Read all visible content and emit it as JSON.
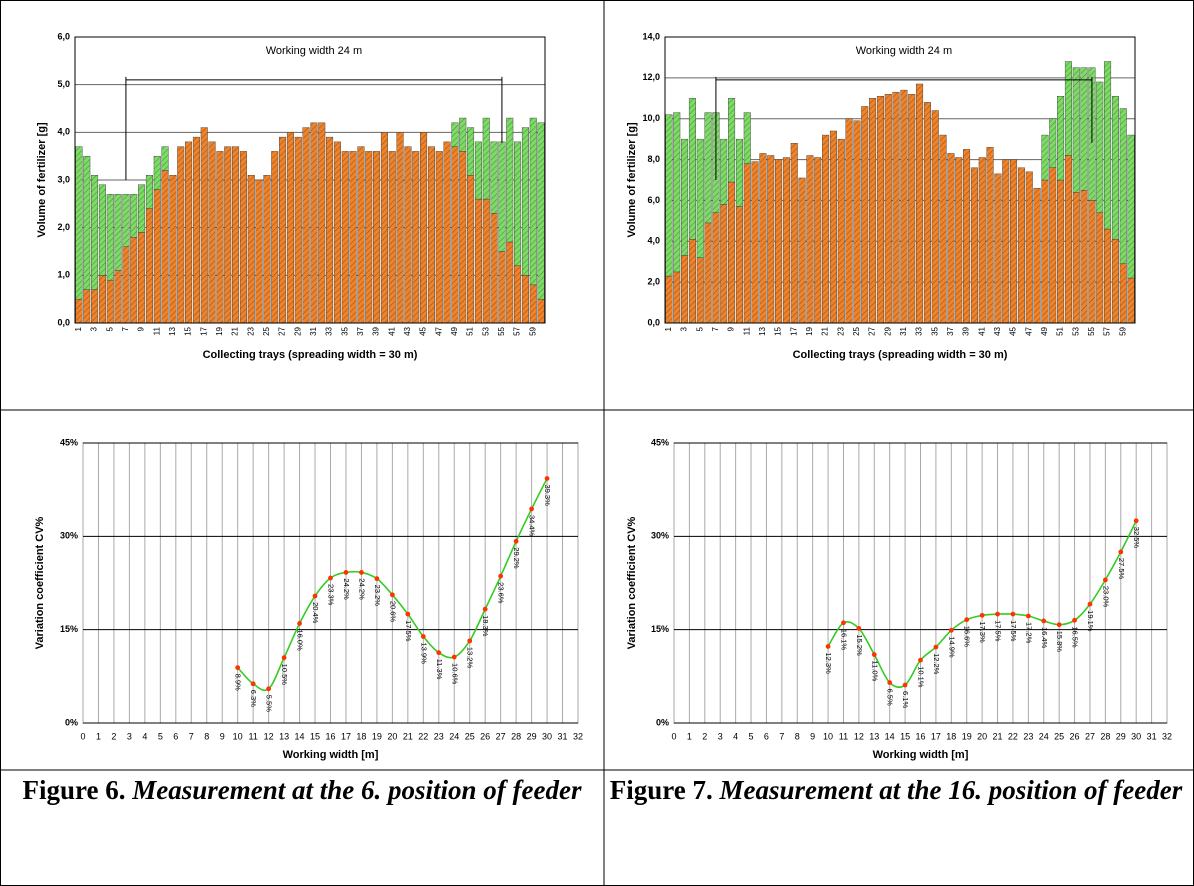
{
  "chart_data": [
    {
      "type": "bar",
      "stacked": true,
      "annotation": "Working width  24 m",
      "x_label": "Collecting trays (spreading width =  30 m)",
      "y_label": "Volume of fertilizer [g]",
      "categories": [
        "1",
        null,
        "3",
        null,
        "5",
        null,
        "7",
        null,
        "9",
        null,
        "11",
        null,
        "13",
        null,
        "15",
        null,
        "17",
        null,
        "19",
        null,
        "21",
        null,
        "23",
        null,
        "25",
        null,
        "27",
        null,
        "29",
        null,
        "31",
        null,
        "33",
        null,
        "35",
        null,
        "37",
        null,
        "39",
        null,
        "41",
        null,
        "43",
        null,
        "45",
        null,
        "47",
        null,
        "49",
        null,
        "51",
        null,
        "53",
        null,
        "55",
        null,
        "57",
        null,
        "59",
        null
      ],
      "series": [
        {
          "color": "#f0832a",
          "values": [
            0.5,
            0.7,
            0.7,
            1.0,
            0.9,
            1.1,
            1.6,
            1.8,
            1.9,
            2.4,
            2.8,
            3.2,
            3.1,
            3.7,
            3.8,
            3.9,
            4.1,
            3.8,
            3.6,
            3.7,
            3.7,
            3.6,
            3.1,
            3.0,
            3.1,
            3.6,
            3.9,
            4.0,
            3.9,
            4.1,
            4.2,
            4.2,
            3.9,
            3.8,
            3.6,
            3.6,
            3.7,
            3.6,
            3.6,
            4.0,
            3.6,
            4.0,
            3.7,
            3.6,
            4.0,
            3.7,
            3.6,
            3.8,
            3.7,
            3.6,
            3.1,
            2.6,
            2.6,
            2.3,
            1.5,
            1.7,
            1.2,
            1.0,
            0.8,
            0.5
          ]
        },
        {
          "color": "#7ddc66",
          "values": [
            3.2,
            2.8,
            2.4,
            1.9,
            1.8,
            1.6,
            1.1,
            0.9,
            1.0,
            0.7,
            0.7,
            0.5,
            0,
            0,
            0,
            0,
            0,
            0,
            0,
            0,
            0,
            0,
            0,
            0,
            0,
            0,
            0,
            0,
            0,
            0,
            0,
            0,
            0,
            0,
            0,
            0,
            0,
            0,
            0,
            0,
            0,
            0,
            0,
            0,
            0,
            0,
            0,
            0,
            0.5,
            0.7,
            1.0,
            1.2,
            1.7,
            1.5,
            2.3,
            2.6,
            2.6,
            3.1,
            3.5,
            3.7
          ]
        }
      ],
      "ylim": [
        0,
        6
      ],
      "yticks": [
        {
          "value": 0,
          "label": "0,0"
        },
        {
          "value": 1,
          "label": "1,0"
        },
        {
          "value": 2,
          "label": "2,0"
        },
        {
          "value": 3,
          "label": "3,0"
        },
        {
          "value": 4,
          "label": "4,0"
        },
        {
          "value": 5,
          "label": "5,0"
        },
        {
          "value": 6,
          "label": "6,0"
        }
      ],
      "grid": true
    },
    {
      "type": "bar",
      "stacked": true,
      "annotation": "Working width  24 m",
      "x_label": "Collecting trays (spreading width =  30 m)",
      "y_label": "Volume of fertilizer [g]",
      "categories": [
        "1",
        null,
        "3",
        null,
        "5",
        null,
        "7",
        null,
        "9",
        null,
        "11",
        null,
        "13",
        null,
        "15",
        null,
        "17",
        null,
        "19",
        null,
        "21",
        null,
        "23",
        null,
        "25",
        null,
        "27",
        null,
        "29",
        null,
        "31",
        null,
        "33",
        null,
        "35",
        null,
        "37",
        null,
        "39",
        null,
        "41",
        null,
        "43",
        null,
        "45",
        null,
        "47",
        null,
        "49",
        null,
        "51",
        null,
        "53",
        null,
        "55",
        null,
        "57",
        null,
        "59",
        null
      ],
      "series": [
        {
          "color": "#f0832a",
          "values": [
            2.3,
            2.5,
            3.3,
            4.1,
            3.2,
            4.9,
            5.4,
            5.8,
            6.9,
            5.7,
            7.8,
            7.9,
            8.3,
            8.2,
            8.0,
            8.1,
            8.8,
            7.1,
            8.2,
            8.1,
            9.2,
            9.4,
            9.0,
            10.0,
            9.9,
            10.6,
            11.0,
            11.1,
            11.2,
            11.3,
            11.4,
            11.2,
            11.7,
            10.8,
            10.4,
            9.2,
            8.3,
            8.1,
            8.5,
            7.6,
            8.1,
            8.6,
            7.3,
            8.0,
            8.0,
            7.6,
            7.4,
            6.6,
            7.0,
            7.6,
            7.0,
            8.2,
            6.4,
            6.5,
            6.0,
            5.4,
            4.6,
            4.1,
            2.9,
            2.2
          ]
        },
        {
          "color": "#7ddc66",
          "values": [
            7.9,
            7.8,
            5.7,
            6.9,
            5.8,
            5.4,
            4.9,
            3.2,
            4.1,
            3.3,
            2.5,
            0,
            0,
            0,
            0,
            0,
            0,
            0,
            0,
            0,
            0,
            0,
            0,
            0,
            0,
            0,
            0,
            0,
            0,
            0,
            0,
            0,
            0,
            0,
            0,
            0,
            0,
            0,
            0,
            0,
            0,
            0,
            0,
            0,
            0,
            0,
            0,
            0,
            2.2,
            2.4,
            4.1,
            4.6,
            6.1,
            6.0,
            6.5,
            6.4,
            8.2,
            7.0,
            7.6,
            7.0
          ]
        }
      ],
      "ylim": [
        0,
        14
      ],
      "yticks": [
        {
          "value": 0,
          "label": "0,0"
        },
        {
          "value": 2,
          "label": "2,0"
        },
        {
          "value": 4,
          "label": "4,0"
        },
        {
          "value": 6,
          "label": "6,0"
        },
        {
          "value": 8,
          "label": "8,0"
        },
        {
          "value": 10,
          "label": "10,0"
        },
        {
          "value": 12,
          "label": "12,0"
        },
        {
          "value": 14,
          "label": "14,0"
        }
      ],
      "grid": true
    },
    {
      "type": "line",
      "smooth": true,
      "x_label": "Working width [m]",
      "y_label": "Variation coefficient CV%",
      "line_color": "#33cc22",
      "marker_color": "#ff3300",
      "x": [
        10,
        11,
        12,
        13,
        14,
        15,
        16,
        17,
        18,
        19,
        20,
        21,
        22,
        23,
        24,
        25,
        26,
        27,
        28,
        29,
        30
      ],
      "values": [
        8.9,
        6.3,
        5.5,
        10.5,
        16.0,
        20.4,
        23.3,
        24.2,
        24.2,
        23.2,
        20.6,
        17.5,
        13.9,
        11.3,
        10.6,
        13.2,
        18.3,
        23.6,
        29.2,
        34.4,
        39.3
      ],
      "value_labels": [
        "8.9%",
        "6.3%",
        "5.5%",
        "10.5%",
        "16.0%",
        "20.4%",
        "23.3%",
        "24.2%",
        "24.2%",
        "23.2%",
        "20.6%",
        "17.5%",
        "13.9%",
        "11.3%",
        "10.6%",
        "13.2%",
        "18.3%",
        "23.6%",
        "29.2%",
        "34.4%",
        "39.3%"
      ],
      "xlim": [
        0,
        32
      ],
      "xticks": [
        0,
        1,
        2,
        3,
        4,
        5,
        6,
        7,
        8,
        9,
        10,
        11,
        12,
        13,
        14,
        15,
        16,
        17,
        18,
        19,
        20,
        21,
        22,
        23,
        24,
        25,
        26,
        27,
        28,
        29,
        30,
        31,
        32
      ],
      "ylim": [
        0,
        45
      ],
      "yticks": [
        {
          "value": 0,
          "label": "0%"
        },
        {
          "value": 15,
          "label": "15%"
        },
        {
          "value": 30,
          "label": "30%"
        },
        {
          "value": 45,
          "label": "45%"
        }
      ],
      "grid": true
    },
    {
      "type": "line",
      "smooth": true,
      "x_label": "Working width [m]",
      "y_label": "Variation coefficient CV%",
      "line_color": "#33cc22",
      "marker_color": "#ff3300",
      "x": [
        10,
        11,
        12,
        13,
        14,
        15,
        16,
        17,
        18,
        19,
        20,
        21,
        22,
        23,
        24,
        25,
        26,
        27,
        28,
        29,
        30
      ],
      "values": [
        12.3,
        16.1,
        15.2,
        11.0,
        6.5,
        6.1,
        10.1,
        12.2,
        14.9,
        16.6,
        17.3,
        17.5,
        17.5,
        17.2,
        16.4,
        15.8,
        16.5,
        19.1,
        23.0,
        27.5,
        32.5
      ],
      "value_labels": [
        "12.3%",
        "16.1%",
        "15.2%",
        "11.0%",
        "6.5%",
        "6.1%",
        "10.1%",
        "12.2%",
        "14.9%",
        "16.6%",
        "17.3%",
        "17.5%",
        "17.5%",
        "17.2%",
        "16.4%",
        "15.8%",
        "16.5%",
        "19.1%",
        "23.0%",
        "27.5%",
        "32.5%"
      ],
      "xlim": [
        0,
        32
      ],
      "xticks": [
        0,
        1,
        2,
        3,
        4,
        5,
        6,
        7,
        8,
        9,
        10,
        11,
        12,
        13,
        14,
        15,
        16,
        17,
        18,
        19,
        20,
        21,
        22,
        23,
        24,
        25,
        26,
        27,
        28,
        29,
        30,
        31,
        32
      ],
      "ylim": [
        0,
        45
      ],
      "yticks": [
        {
          "value": 0,
          "label": "0%"
        },
        {
          "value": 15,
          "label": "15%"
        },
        {
          "value": 30,
          "label": "30%"
        },
        {
          "value": 45,
          "label": "45%"
        }
      ],
      "grid": true
    }
  ],
  "captions": [
    {
      "label": "Figure 6.",
      "text": "Measurement at the 6. position of feeder"
    },
    {
      "label": "Figure 7.",
      "text": "Measurement at the 16. position of feeder"
    }
  ]
}
